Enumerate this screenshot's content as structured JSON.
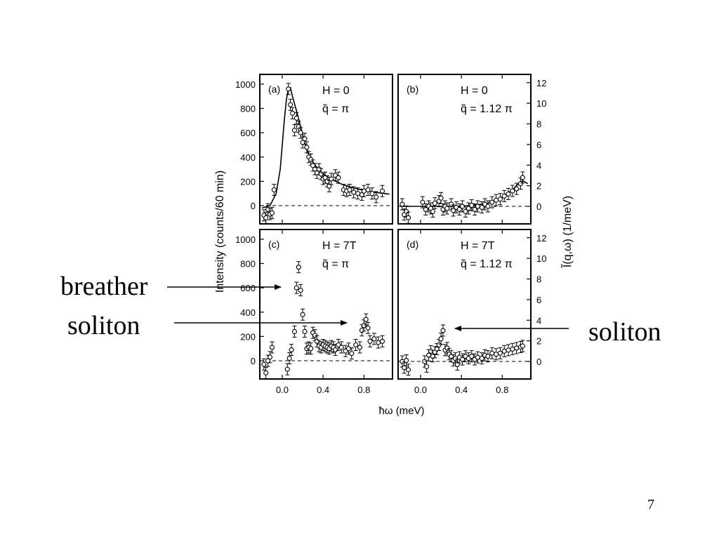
{
  "slide": {
    "page_number": "7",
    "annotations": {
      "breather": "breather",
      "soliton_left": "soliton",
      "soliton_right": "soliton"
    }
  },
  "figure": {
    "ylabel_left": "Intensity (counts/60 min)",
    "ylabel_right": "Ĩ(q,ω) (1/meV)",
    "xlabel": "ħω (meV)",
    "left_ticks": [
      "1000",
      "800",
      "600",
      "400",
      "200",
      "0"
    ],
    "right_ticks": [
      "12",
      "10",
      "8",
      "6",
      "4",
      "2",
      "0"
    ],
    "x_ticks": [
      "0.0",
      "0.4",
      "0.8"
    ]
  },
  "chart_data": [
    {
      "type": "scatter",
      "panel": "(a)",
      "field": "H = 0",
      "wavevector": "q̃ = π",
      "xlim": [
        -0.22,
        1.08
      ],
      "ylim": [
        -150,
        1080
      ],
      "y_axis": "Intensity (counts/60 min)",
      "points": [
        [
          -0.18,
          -80
        ],
        [
          -0.16,
          -100
        ],
        [
          -0.14,
          -30
        ],
        [
          -0.12,
          -70
        ],
        [
          -0.1,
          -60
        ],
        [
          -0.08,
          130
        ],
        [
          0.06,
          960
        ],
        [
          0.08,
          830
        ],
        [
          0.1,
          760
        ],
        [
          0.12,
          620
        ],
        [
          0.14,
          720
        ],
        [
          0.16,
          650
        ],
        [
          0.18,
          600
        ],
        [
          0.2,
          520
        ],
        [
          0.22,
          550
        ],
        [
          0.24,
          480
        ],
        [
          0.26,
          400
        ],
        [
          0.28,
          380
        ],
        [
          0.3,
          330
        ],
        [
          0.32,
          300
        ],
        [
          0.34,
          270
        ],
        [
          0.36,
          300
        ],
        [
          0.38,
          260
        ],
        [
          0.4,
          220
        ],
        [
          0.42,
          230
        ],
        [
          0.44,
          200
        ],
        [
          0.46,
          160
        ],
        [
          0.48,
          220
        ],
        [
          0.52,
          250
        ],
        [
          0.55,
          230
        ],
        [
          0.6,
          130
        ],
        [
          0.63,
          120
        ],
        [
          0.66,
          130
        ],
        [
          0.7,
          110
        ],
        [
          0.74,
          100
        ],
        [
          0.78,
          90
        ],
        [
          0.8,
          120
        ],
        [
          0.84,
          130
        ],
        [
          0.88,
          100
        ],
        [
          0.92,
          70
        ],
        [
          0.98,
          120
        ]
      ],
      "fit_curve": [
        [
          -0.2,
          -20
        ],
        [
          -0.12,
          0
        ],
        [
          -0.06,
          100
        ],
        [
          -0.02,
          300
        ],
        [
          0.0,
          500
        ],
        [
          0.02,
          700
        ],
        [
          0.04,
          870
        ],
        [
          0.06,
          960
        ],
        [
          0.08,
          970
        ],
        [
          0.1,
          900
        ],
        [
          0.14,
          780
        ],
        [
          0.18,
          650
        ],
        [
          0.22,
          520
        ],
        [
          0.26,
          420
        ],
        [
          0.3,
          360
        ],
        [
          0.35,
          300
        ],
        [
          0.4,
          260
        ],
        [
          0.5,
          210
        ],
        [
          0.6,
          170
        ],
        [
          0.7,
          145
        ],
        [
          0.8,
          125
        ],
        [
          0.9,
          110
        ],
        [
          1.0,
          100
        ],
        [
          1.05,
          95
        ]
      ]
    },
    {
      "type": "scatter",
      "panel": "(b)",
      "field": "H = 0",
      "wavevector": "q̃ = 1.12 π",
      "xlim": [
        -0.22,
        1.08
      ],
      "ylim": [
        -1.7,
        12.8
      ],
      "y_axis": "Ĩ(q,ω) (1/meV)",
      "points": [
        [
          -0.18,
          0.2
        ],
        [
          -0.16,
          -0.8
        ],
        [
          -0.14,
          -0.5
        ],
        [
          -0.12,
          -1.1
        ],
        [
          0.02,
          0.4
        ],
        [
          0.05,
          -0.3
        ],
        [
          0.08,
          0.0
        ],
        [
          0.1,
          -0.2
        ],
        [
          0.12,
          -0.5
        ],
        [
          0.14,
          0.3
        ],
        [
          0.18,
          0.5
        ],
        [
          0.2,
          0.8
        ],
        [
          0.22,
          -0.3
        ],
        [
          0.24,
          0.0
        ],
        [
          0.26,
          -0.2
        ],
        [
          0.3,
          0.2
        ],
        [
          0.32,
          -0.4
        ],
        [
          0.35,
          -0.1
        ],
        [
          0.38,
          -0.3
        ],
        [
          0.41,
          0.0
        ],
        [
          0.44,
          -0.5
        ],
        [
          0.47,
          -0.2
        ],
        [
          0.5,
          0.1
        ],
        [
          0.53,
          -0.3
        ],
        [
          0.56,
          0.0
        ],
        [
          0.6,
          -0.1
        ],
        [
          0.63,
          0.2
        ],
        [
          0.66,
          0.0
        ],
        [
          0.7,
          0.4
        ],
        [
          0.74,
          0.6
        ],
        [
          0.78,
          0.7
        ],
        [
          0.82,
          1.0
        ],
        [
          0.86,
          1.2
        ],
        [
          0.9,
          1.5
        ],
        [
          0.94,
          1.7
        ],
        [
          0.98,
          2.2
        ],
        [
          1.0,
          2.8
        ]
      ],
      "fit_curve": [
        [
          -0.2,
          0.0
        ],
        [
          0.2,
          0.0
        ],
        [
          0.4,
          0.0
        ],
        [
          0.6,
          0.2
        ],
        [
          0.7,
          0.4
        ],
        [
          0.8,
          0.9
        ],
        [
          0.9,
          1.6
        ],
        [
          0.96,
          2.2
        ],
        [
          1.0,
          2.5
        ],
        [
          1.05,
          2.2
        ]
      ]
    },
    {
      "type": "scatter",
      "panel": "(c)",
      "field": "H = 7T",
      "wavevector": "q̃ = π",
      "xlim": [
        -0.22,
        1.08
      ],
      "ylim": [
        -150,
        1080
      ],
      "y_axis": "Intensity (counts/60 min)",
      "points": [
        [
          -0.18,
          -30
        ],
        [
          -0.16,
          -100
        ],
        [
          -0.14,
          0
        ],
        [
          -0.12,
          30
        ],
        [
          -0.1,
          110
        ],
        [
          0.05,
          -70
        ],
        [
          0.07,
          20
        ],
        [
          0.09,
          90
        ],
        [
          0.12,
          240
        ],
        [
          0.14,
          600
        ],
        [
          0.16,
          770
        ],
        [
          0.18,
          580
        ],
        [
          0.2,
          380
        ],
        [
          0.22,
          240
        ],
        [
          0.24,
          100
        ],
        [
          0.26,
          110
        ],
        [
          0.28,
          100
        ],
        [
          0.3,
          230
        ],
        [
          0.32,
          210
        ],
        [
          0.34,
          160
        ],
        [
          0.36,
          120
        ],
        [
          0.38,
          110
        ],
        [
          0.4,
          130
        ],
        [
          0.42,
          120
        ],
        [
          0.44,
          110
        ],
        [
          0.46,
          100
        ],
        [
          0.48,
          120
        ],
        [
          0.5,
          110
        ],
        [
          0.52,
          90
        ],
        [
          0.55,
          130
        ],
        [
          0.58,
          110
        ],
        [
          0.62,
          80
        ],
        [
          0.65,
          100
        ],
        [
          0.68,
          60
        ],
        [
          0.72,
          130
        ],
        [
          0.76,
          110
        ],
        [
          0.78,
          250
        ],
        [
          0.8,
          290
        ],
        [
          0.82,
          340
        ],
        [
          0.84,
          270
        ],
        [
          0.86,
          160
        ],
        [
          0.9,
          180
        ],
        [
          0.94,
          150
        ],
        [
          0.98,
          160
        ]
      ]
    },
    {
      "type": "scatter",
      "panel": "(d)",
      "field": "H = 7T",
      "wavevector": "q̃ = 1.12 π",
      "xlim": [
        -0.22,
        1.08
      ],
      "ylim": [
        -1.7,
        12.8
      ],
      "y_axis": "Ĩ(q,ω) (1/meV)",
      "points": [
        [
          -0.18,
          0.0
        ],
        [
          -0.16,
          -0.6
        ],
        [
          -0.14,
          0.1
        ],
        [
          -0.12,
          -0.8
        ],
        [
          0.04,
          0.0
        ],
        [
          0.06,
          -0.5
        ],
        [
          0.08,
          0.6
        ],
        [
          0.1,
          1.0
        ],
        [
          0.12,
          0.5
        ],
        [
          0.14,
          0.9
        ],
        [
          0.16,
          1.2
        ],
        [
          0.18,
          1.6
        ],
        [
          0.2,
          2.2
        ],
        [
          0.22,
          3.0
        ],
        [
          0.24,
          1.1
        ],
        [
          0.26,
          1.3
        ],
        [
          0.28,
          0.7
        ],
        [
          0.3,
          0.5
        ],
        [
          0.32,
          0.1
        ],
        [
          0.34,
          0.3
        ],
        [
          0.36,
          -0.3
        ],
        [
          0.38,
          0.4
        ],
        [
          0.41,
          0.2
        ],
        [
          0.44,
          0.5
        ],
        [
          0.47,
          0.3
        ],
        [
          0.5,
          0.5
        ],
        [
          0.53,
          0.2
        ],
        [
          0.56,
          0.4
        ],
        [
          0.6,
          0.3
        ],
        [
          0.63,
          0.6
        ],
        [
          0.66,
          0.5
        ],
        [
          0.7,
          0.8
        ],
        [
          0.74,
          0.7
        ],
        [
          0.78,
          0.8
        ],
        [
          0.82,
          1.0
        ],
        [
          0.86,
          1.1
        ],
        [
          0.9,
          1.2
        ],
        [
          0.94,
          1.3
        ],
        [
          0.98,
          1.4
        ],
        [
          1.0,
          1.5
        ]
      ]
    }
  ]
}
